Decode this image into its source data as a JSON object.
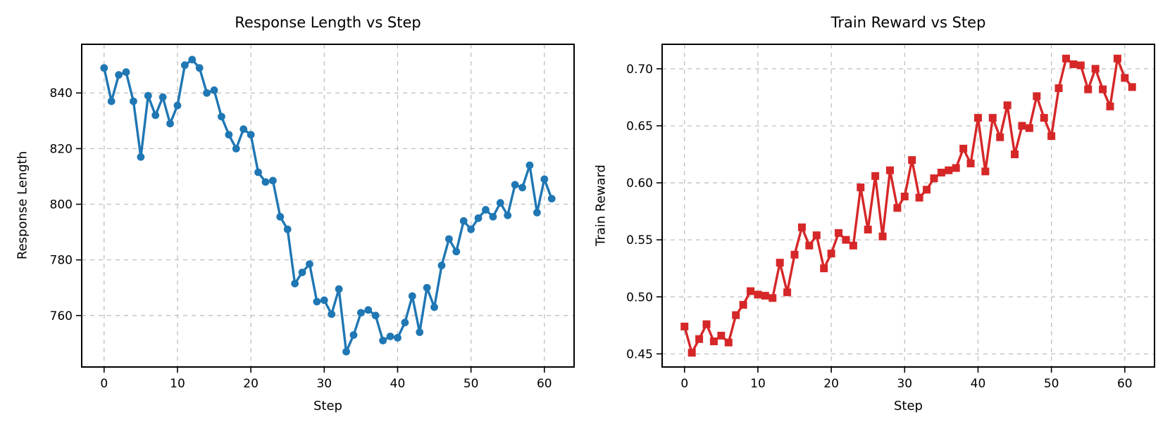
{
  "figure": {
    "background": "#ffffff",
    "grid_color": "#bfbfbf",
    "spine_color": "#000000"
  },
  "chart_data": [
    {
      "type": "line",
      "title": "Response Length vs Step",
      "xlabel": "Step",
      "ylabel": "Response Length",
      "legend": "none",
      "grid": true,
      "color": "#1f77b4",
      "marker": "circle",
      "xlim": [
        -3.05,
        64.05
      ],
      "ylim": [
        741.5,
        857.5
      ],
      "xticks": [
        0,
        10,
        20,
        30,
        40,
        50,
        60
      ],
      "xtick_labels": [
        "0",
        "10",
        "20",
        "30",
        "40",
        "50",
        "60"
      ],
      "yticks": [
        760,
        780,
        800,
        820,
        840
      ],
      "ytick_labels": [
        "760",
        "780",
        "800",
        "820",
        "840"
      ],
      "x": [
        0,
        1,
        2,
        3,
        4,
        5,
        6,
        7,
        8,
        9,
        10,
        11,
        12,
        13,
        14,
        15,
        16,
        17,
        18,
        19,
        20,
        21,
        22,
        23,
        24,
        25,
        26,
        27,
        28,
        29,
        30,
        31,
        32,
        33,
        34,
        35,
        36,
        37,
        38,
        39,
        40,
        41,
        42,
        43,
        44,
        45,
        46,
        47,
        48,
        49,
        50,
        51,
        52,
        53,
        54,
        55,
        56,
        57,
        58,
        59,
        60,
        61
      ],
      "values": [
        849,
        837,
        846.5,
        847.5,
        837,
        817,
        839,
        832,
        838.5,
        829,
        835.5,
        850,
        852,
        849,
        840,
        841,
        831.5,
        825,
        820,
        827,
        825,
        811.5,
        808,
        808.5,
        795.5,
        791,
        771.5,
        775.5,
        778.5,
        765,
        765.5,
        760.5,
        769.5,
        747,
        753,
        761,
        762,
        760,
        751,
        752.5,
        752,
        757.5,
        767,
        754,
        770,
        763,
        778,
        787.5,
        783,
        794,
        791,
        795,
        798,
        795.5,
        800.5,
        796,
        807,
        806,
        814,
        797,
        809,
        802
      ]
    },
    {
      "type": "line",
      "title": "Train Reward vs Step",
      "xlabel": "Step",
      "ylabel": "Train Reward",
      "legend": "none",
      "grid": true,
      "color": "#d62728",
      "marker": "square",
      "xlim": [
        -3.05,
        64.05
      ],
      "ylim": [
        0.4385,
        0.7215
      ],
      "xticks": [
        0,
        10,
        20,
        30,
        40,
        50,
        60
      ],
      "xtick_labels": [
        "0",
        "10",
        "20",
        "30",
        "40",
        "50",
        "60"
      ],
      "yticks": [
        0.45,
        0.5,
        0.55,
        0.6,
        0.65,
        0.7
      ],
      "ytick_labels": [
        "0.45",
        "0.50",
        "0.55",
        "0.60",
        "0.65",
        "0.70"
      ],
      "x": [
        0,
        1,
        2,
        3,
        4,
        5,
        6,
        7,
        8,
        9,
        10,
        11,
        12,
        13,
        14,
        15,
        16,
        17,
        18,
        19,
        20,
        21,
        22,
        23,
        24,
        25,
        26,
        27,
        28,
        29,
        30,
        31,
        32,
        33,
        34,
        35,
        36,
        37,
        38,
        39,
        40,
        41,
        42,
        43,
        44,
        45,
        46,
        47,
        48,
        49,
        50,
        51,
        52,
        53,
        54,
        55,
        56,
        57,
        58,
        59,
        60,
        61
      ],
      "values": [
        0.474,
        0.451,
        0.463,
        0.476,
        0.461,
        0.466,
        0.46,
        0.484,
        0.493,
        0.505,
        0.502,
        0.501,
        0.499,
        0.53,
        0.504,
        0.537,
        0.561,
        0.545,
        0.554,
        0.525,
        0.538,
        0.556,
        0.55,
        0.545,
        0.596,
        0.559,
        0.606,
        0.553,
        0.611,
        0.578,
        0.588,
        0.62,
        0.587,
        0.594,
        0.604,
        0.609,
        0.611,
        0.613,
        0.63,
        0.617,
        0.657,
        0.61,
        0.657,
        0.64,
        0.668,
        0.625,
        0.65,
        0.648,
        0.676,
        0.657,
        0.641,
        0.683,
        0.709,
        0.704,
        0.703,
        0.682,
        0.7,
        0.682,
        0.667,
        0.709,
        0.692,
        0.684
      ]
    }
  ]
}
